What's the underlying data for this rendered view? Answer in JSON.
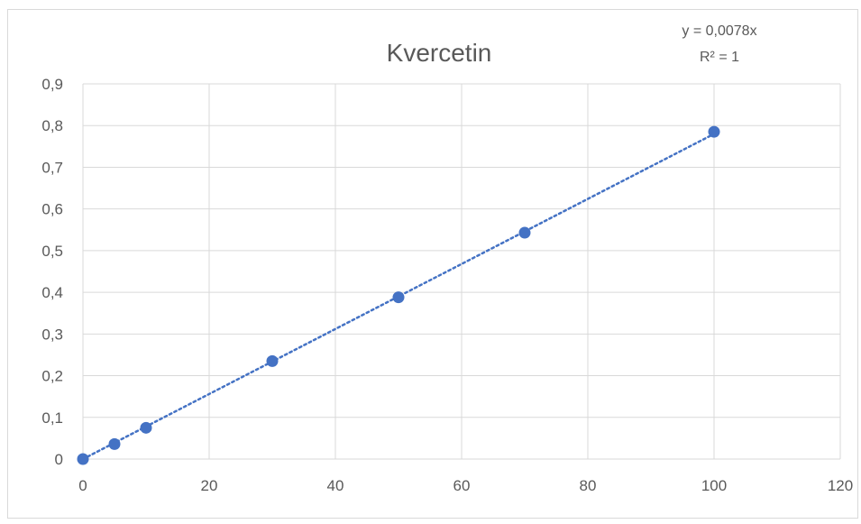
{
  "chart_data": {
    "type": "scatter",
    "title": "Kvercetin",
    "xlabel": "",
    "ylabel": "",
    "xlim": [
      0,
      120
    ],
    "ylim": [
      0,
      0.9
    ],
    "x_ticks": [
      "0",
      "20",
      "40",
      "60",
      "80",
      "100",
      "120"
    ],
    "y_ticks": [
      "0",
      "0,1",
      "0,2",
      "0,3",
      "0,4",
      "0,5",
      "0,6",
      "0,7",
      "0,8",
      "0,9"
    ],
    "grid": true,
    "legend": "none",
    "series": [
      {
        "x": [
          0,
          5,
          10,
          30,
          50,
          70,
          100
        ],
        "y": [
          0,
          0.036,
          0.075,
          0.235,
          0.388,
          0.543,
          0.785
        ],
        "color": "#4472c4"
      }
    ],
    "trendline": {
      "type": "linear",
      "slope": 0.0078,
      "intercept": 0,
      "x_range": [
        0,
        100
      ],
      "style": "dotted",
      "color": "#4472c4",
      "equation": "y = 0,0078x",
      "r_squared": "R² = 1"
    }
  }
}
